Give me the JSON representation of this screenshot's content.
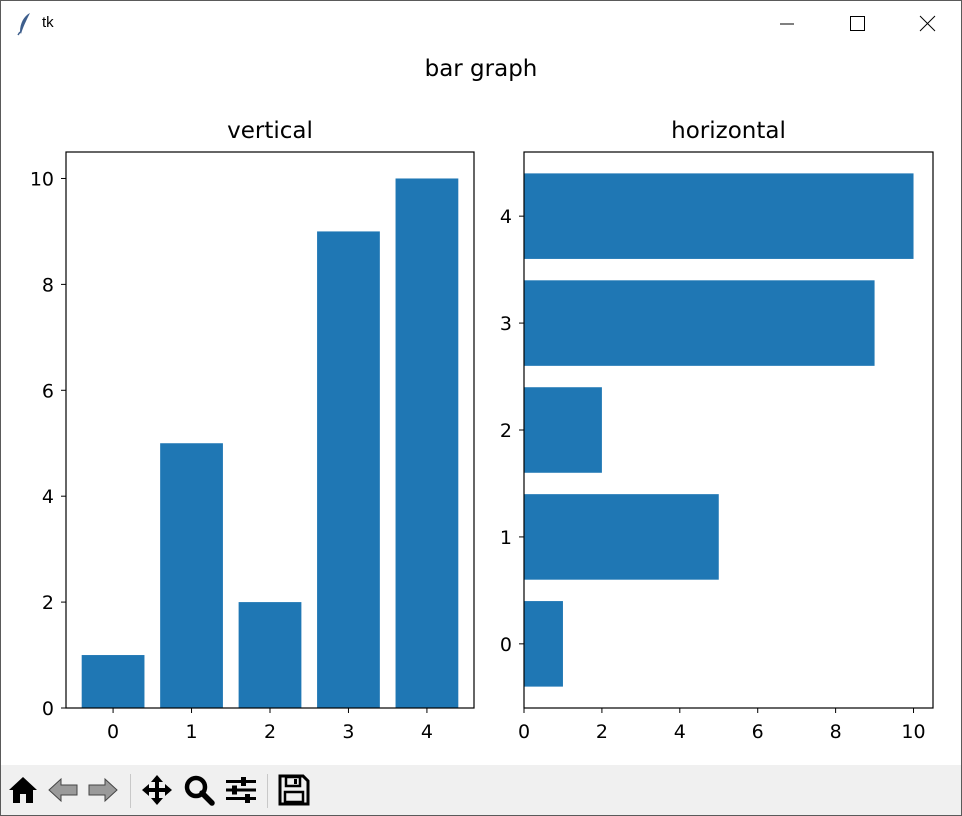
{
  "window": {
    "title": "tk"
  },
  "figure": {
    "title": "bar graph"
  },
  "colors": {
    "bar": "#1f77b4"
  },
  "chart_data": [
    {
      "type": "bar",
      "title": "vertical",
      "categories": [
        "0",
        "1",
        "2",
        "3",
        "4"
      ],
      "values": [
        1,
        5,
        2,
        9,
        10
      ],
      "orientation": "vertical",
      "xlabel": "",
      "ylabel": "",
      "ylim": [
        0,
        10.5
      ],
      "yticks": [
        0,
        2,
        4,
        6,
        8,
        10
      ],
      "grid": false
    },
    {
      "type": "bar",
      "title": "horizontal",
      "categories": [
        "0",
        "1",
        "2",
        "3",
        "4"
      ],
      "values": [
        1,
        5,
        2,
        9,
        10
      ],
      "orientation": "horizontal",
      "xlabel": "",
      "ylabel": "",
      "xlim": [
        0,
        10.5
      ],
      "xticks": [
        0,
        2,
        4,
        6,
        8,
        10
      ],
      "grid": false
    }
  ],
  "toolbar": {
    "buttons": [
      {
        "icon": "home-icon"
      },
      {
        "icon": "back-arrow-icon"
      },
      {
        "icon": "forward-arrow-icon"
      },
      {
        "icon": "pan-move-icon"
      },
      {
        "icon": "zoom-magnifier-icon"
      },
      {
        "icon": "configure-subplots-icon"
      },
      {
        "icon": "save-disk-icon"
      }
    ]
  }
}
